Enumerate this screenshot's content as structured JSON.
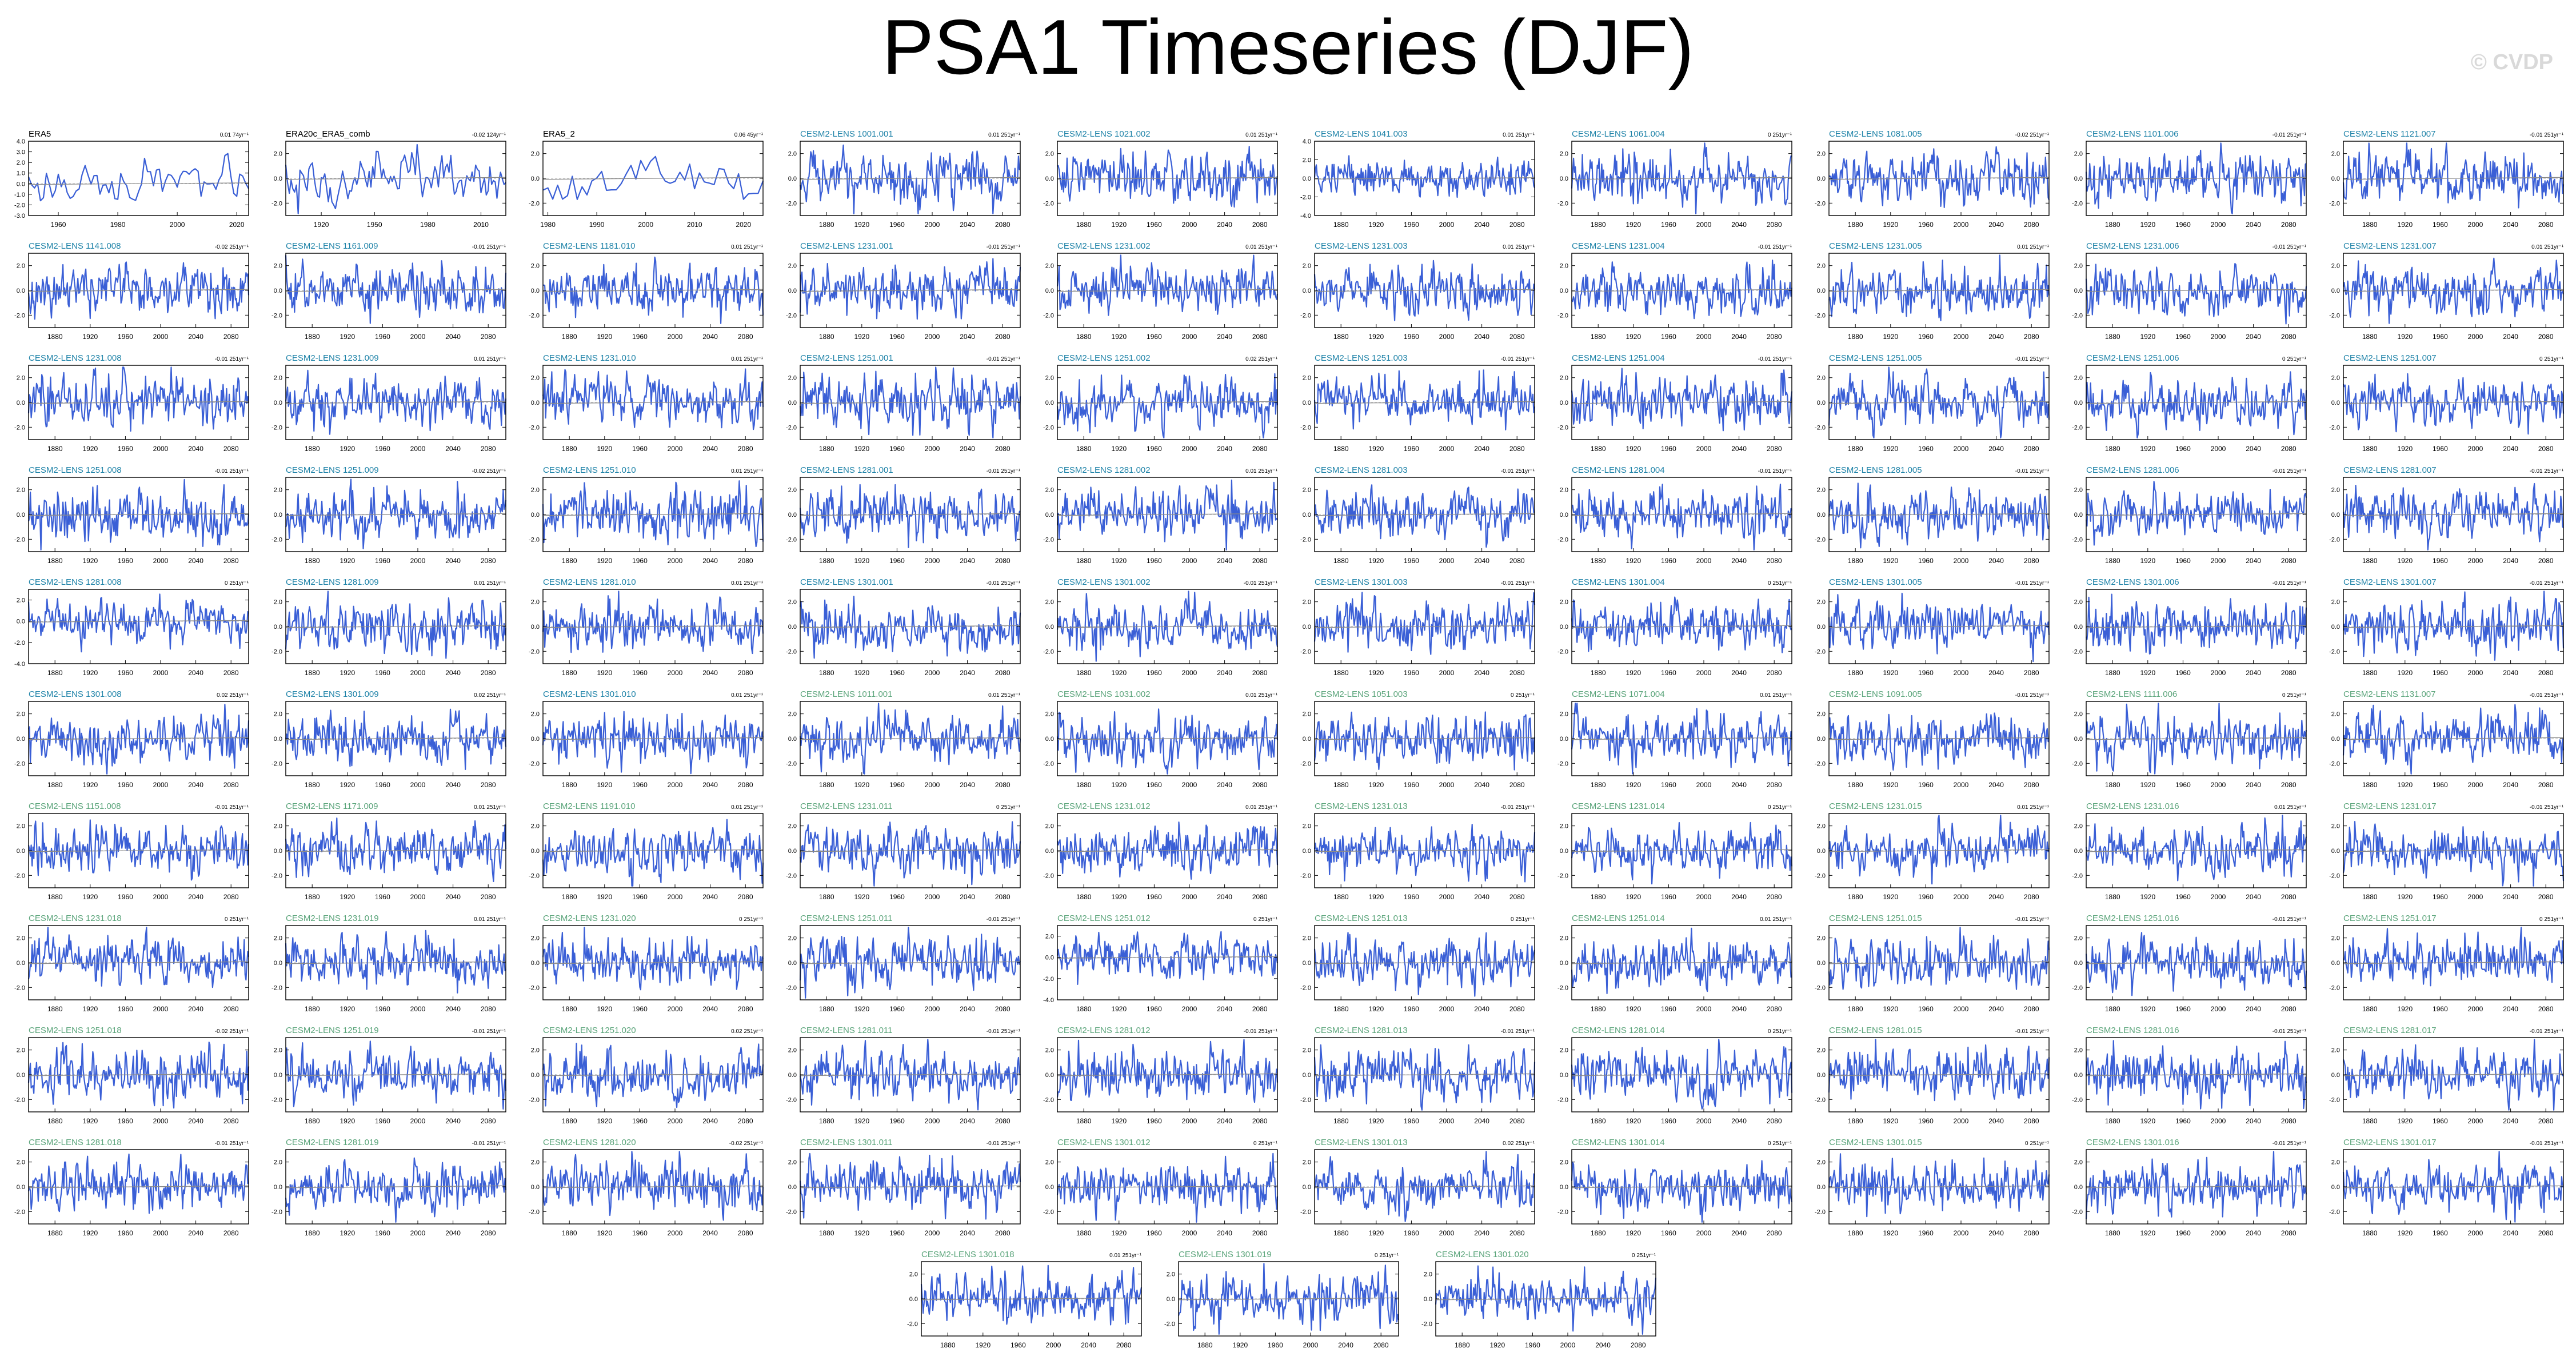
{
  "title": "PSA1 Timeseries (DJF)",
  "watermark": "© CVDP",
  "colors": {
    "series": "#3a5fd6",
    "trend": "#8a8a8a",
    "label_obs": "#000000",
    "label_member": "#1f83a8",
    "label_member_alt": "#5aa47a"
  },
  "chart_data": [
    {
      "type": "line",
      "label": "ERA5",
      "trend": "0.01 74yr⁻¹",
      "xticks": [
        "1960",
        "1980",
        "2000",
        "2020"
      ],
      "xlim": [
        1950,
        2024
      ],
      "yticks": [
        "4.0",
        "3.0",
        "2.0",
        "1.0",
        "0.0",
        "-1.0",
        "-2.0",
        "-3.0"
      ],
      "ylim": [
        -3,
        4
      ],
      "label_style": "obs"
    },
    {
      "type": "line",
      "label": "ERA20c_ERA5_comb",
      "trend": "-0.02 124yr⁻¹",
      "xticks": [
        "1920",
        "1950",
        "1980",
        "2010"
      ],
      "xlim": [
        1900,
        2024
      ],
      "yticks": [
        "2.0",
        "0.0",
        "-2.0"
      ],
      "ylim": [
        -3,
        3
      ],
      "label_style": "obs"
    },
    {
      "type": "line",
      "label": "ERA5_2",
      "trend": "0.06 45yr⁻¹",
      "xticks": [
        "1980",
        "1990",
        "2000",
        "2010",
        "2020"
      ],
      "xlim": [
        1979,
        2024
      ],
      "yticks": [
        "2.0",
        "0.0",
        "-2.0"
      ],
      "ylim": [
        -3,
        3
      ],
      "label_style": "obs"
    },
    {
      "type": "line",
      "label": "CESM2-LENS 1001.001",
      "trend": "0.01 251yr⁻¹",
      "label_style": "member"
    },
    {
      "type": "line",
      "label": "CESM2-LENS 1021.002",
      "trend": "0.01 251yr⁻¹",
      "label_style": "member"
    },
    {
      "type": "line",
      "label": "CESM2-LENS 1041.003",
      "trend": "0.01 251yr⁻¹",
      "yticks": [
        "4.0",
        "2.0",
        "0.0",
        "-2.0",
        "-4.0"
      ],
      "ylim": [
        -4,
        4
      ],
      "label_style": "member"
    },
    {
      "type": "line",
      "label": "CESM2-LENS 1061.004",
      "trend": "0 251yr⁻¹",
      "label_style": "member"
    },
    {
      "type": "line",
      "label": "CESM2-LENS 1081.005",
      "trend": "-0.02 251yr⁻¹",
      "label_style": "member"
    },
    {
      "type": "line",
      "label": "CESM2-LENS 1101.006",
      "trend": "-0.01 251yr⁻¹",
      "label_style": "member"
    },
    {
      "type": "line",
      "label": "CESM2-LENS 1121.007",
      "trend": "-0.01 251yr⁻¹",
      "label_style": "member"
    },
    {
      "type": "line",
      "label": "CESM2-LENS 1141.008",
      "trend": "-0.02 251yr⁻¹",
      "label_style": "member"
    },
    {
      "type": "line",
      "label": "CESM2-LENS 1161.009",
      "trend": "-0.01 251yr⁻¹",
      "label_style": "member"
    },
    {
      "type": "line",
      "label": "CESM2-LENS 1181.010",
      "trend": "0.01 251yr⁻¹",
      "label_style": "member"
    },
    {
      "type": "line",
      "label": "CESM2-LENS 1231.001",
      "trend": "-0.01 251yr⁻¹",
      "label_style": "member"
    },
    {
      "type": "line",
      "label": "CESM2-LENS 1231.002",
      "trend": "0.01 251yr⁻¹",
      "label_style": "member"
    },
    {
      "type": "line",
      "label": "CESM2-LENS 1231.003",
      "trend": "0.01 251yr⁻¹",
      "label_style": "member"
    },
    {
      "type": "line",
      "label": "CESM2-LENS 1231.004",
      "trend": "-0.01 251yr⁻¹",
      "label_style": "member"
    },
    {
      "type": "line",
      "label": "CESM2-LENS 1231.005",
      "trend": "0.01 251yr⁻¹",
      "label_style": "member"
    },
    {
      "type": "line",
      "label": "CESM2-LENS 1231.006",
      "trend": "-0.01 251yr⁻¹",
      "label_style": "member"
    },
    {
      "type": "line",
      "label": "CESM2-LENS 1231.007",
      "trend": "0.01 251yr⁻¹",
      "label_style": "member"
    },
    {
      "type": "line",
      "label": "CESM2-LENS 1231.008",
      "trend": "-0.01 251yr⁻¹",
      "label_style": "member"
    },
    {
      "type": "line",
      "label": "CESM2-LENS 1231.009",
      "trend": "0.01 251yr⁻¹",
      "label_style": "member"
    },
    {
      "type": "line",
      "label": "CESM2-LENS 1231.010",
      "trend": "0.01 251yr⁻¹",
      "label_style": "member"
    },
    {
      "type": "line",
      "label": "CESM2-LENS 1251.001",
      "trend": "-0.01 251yr⁻¹",
      "label_style": "member"
    },
    {
      "type": "line",
      "label": "CESM2-LENS 1251.002",
      "trend": "0.02 251yr⁻¹",
      "label_style": "member"
    },
    {
      "type": "line",
      "label": "CESM2-LENS 1251.003",
      "trend": "-0.01 251yr⁻¹",
      "label_style": "member"
    },
    {
      "type": "line",
      "label": "CESM2-LENS 1251.004",
      "trend": "-0.01 251yr⁻¹",
      "label_style": "member"
    },
    {
      "type": "line",
      "label": "CESM2-LENS 1251.005",
      "trend": "-0.01 251yr⁻¹",
      "label_style": "member"
    },
    {
      "type": "line",
      "label": "CESM2-LENS 1251.006",
      "trend": "0 251yr⁻¹",
      "label_style": "member"
    },
    {
      "type": "line",
      "label": "CESM2-LENS 1251.007",
      "trend": "0 251yr⁻¹",
      "label_style": "member"
    },
    {
      "type": "line",
      "label": "CESM2-LENS 1251.008",
      "trend": "-0.01 251yr⁻¹",
      "label_style": "member"
    },
    {
      "type": "line",
      "label": "CESM2-LENS 1251.009",
      "trend": "-0.02 251yr⁻¹",
      "label_style": "member"
    },
    {
      "type": "line",
      "label": "CESM2-LENS 1251.010",
      "trend": "0.01 251yr⁻¹",
      "label_style": "member"
    },
    {
      "type": "line",
      "label": "CESM2-LENS 1281.001",
      "trend": "-0.01 251yr⁻¹",
      "label_style": "member"
    },
    {
      "type": "line",
      "label": "CESM2-LENS 1281.002",
      "trend": "0.01 251yr⁻¹",
      "label_style": "member"
    },
    {
      "type": "line",
      "label": "CESM2-LENS 1281.003",
      "trend": "-0.01 251yr⁻¹",
      "label_style": "member"
    },
    {
      "type": "line",
      "label": "CESM2-LENS 1281.004",
      "trend": "-0.01 251yr⁻¹",
      "label_style": "member"
    },
    {
      "type": "line",
      "label": "CESM2-LENS 1281.005",
      "trend": "-0.01 251yr⁻¹",
      "label_style": "member"
    },
    {
      "type": "line",
      "label": "CESM2-LENS 1281.006",
      "trend": "-0.01 251yr⁻¹",
      "label_style": "member"
    },
    {
      "type": "line",
      "label": "CESM2-LENS 1281.007",
      "trend": "-0.01 251yr⁻¹",
      "label_style": "member"
    },
    {
      "type": "line",
      "label": "CESM2-LENS 1281.008",
      "trend": "0 251yr⁻¹",
      "yticks": [
        "2.0",
        "0.0",
        "-2.0",
        "-4.0"
      ],
      "ylim": [
        -4,
        3
      ],
      "label_style": "member"
    },
    {
      "type": "line",
      "label": "CESM2-LENS 1281.009",
      "trend": "0.01 251yr⁻¹",
      "label_style": "member"
    },
    {
      "type": "line",
      "label": "CESM2-LENS 1281.010",
      "trend": "0.01 251yr⁻¹",
      "label_style": "member"
    },
    {
      "type": "line",
      "label": "CESM2-LENS 1301.001",
      "trend": "-0.01 251yr⁻¹",
      "label_style": "member"
    },
    {
      "type": "line",
      "label": "CESM2-LENS 1301.002",
      "trend": "-0.01 251yr⁻¹",
      "label_style": "member"
    },
    {
      "type": "line",
      "label": "CESM2-LENS 1301.003",
      "trend": "-0.01 251yr⁻¹",
      "label_style": "member"
    },
    {
      "type": "line",
      "label": "CESM2-LENS 1301.004",
      "trend": "0 251yr⁻¹",
      "label_style": "member"
    },
    {
      "type": "line",
      "label": "CESM2-LENS 1301.005",
      "trend": "-0.01 251yr⁻¹",
      "label_style": "member"
    },
    {
      "type": "line",
      "label": "CESM2-LENS 1301.006",
      "trend": "-0.01 251yr⁻¹",
      "label_style": "member"
    },
    {
      "type": "line",
      "label": "CESM2-LENS 1301.007",
      "trend": "-0.01 251yr⁻¹",
      "label_style": "member"
    },
    {
      "type": "line",
      "label": "CESM2-LENS 1301.008",
      "trend": "0.02 251yr⁻¹",
      "label_style": "member"
    },
    {
      "type": "line",
      "label": "CESM2-LENS 1301.009",
      "trend": "0.02 251yr⁻¹",
      "label_style": "member"
    },
    {
      "type": "line",
      "label": "CESM2-LENS 1301.010",
      "trend": "0.01 251yr⁻¹",
      "label_style": "member"
    },
    {
      "type": "line",
      "label": "CESM2-LENS 1011.001",
      "trend": "0.01 251yr⁻¹",
      "label_style": "member_alt"
    },
    {
      "type": "line",
      "label": "CESM2-LENS 1031.002",
      "trend": "0.01 251yr⁻¹",
      "label_style": "member_alt"
    },
    {
      "type": "line",
      "label": "CESM2-LENS 1051.003",
      "trend": "0 251yr⁻¹",
      "label_style": "member_alt"
    },
    {
      "type": "line",
      "label": "CESM2-LENS 1071.004",
      "trend": "0.01 251yr⁻¹",
      "label_style": "member_alt"
    },
    {
      "type": "line",
      "label": "CESM2-LENS 1091.005",
      "trend": "-0.01 251yr⁻¹",
      "label_style": "member_alt"
    },
    {
      "type": "line",
      "label": "CESM2-LENS 1111.006",
      "trend": "0 251yr⁻¹",
      "label_style": "member_alt"
    },
    {
      "type": "line",
      "label": "CESM2-LENS 1131.007",
      "trend": "-0.01 251yr⁻¹",
      "label_style": "member_alt"
    },
    {
      "type": "line",
      "label": "CESM2-LENS 1151.008",
      "trend": "-0.01 251yr⁻¹",
      "label_style": "member_alt"
    },
    {
      "type": "line",
      "label": "CESM2-LENS 1171.009",
      "trend": "0.01 251yr⁻¹",
      "label_style": "member_alt"
    },
    {
      "type": "line",
      "label": "CESM2-LENS 1191.010",
      "trend": "0.01 251yr⁻¹",
      "label_style": "member_alt"
    },
    {
      "type": "line",
      "label": "CESM2-LENS 1231.011",
      "trend": "0 251yr⁻¹",
      "label_style": "member_alt"
    },
    {
      "type": "line",
      "label": "CESM2-LENS 1231.012",
      "trend": "0.01 251yr⁻¹",
      "label_style": "member_alt"
    },
    {
      "type": "line",
      "label": "CESM2-LENS 1231.013",
      "trend": "-0.01 251yr⁻¹",
      "label_style": "member_alt"
    },
    {
      "type": "line",
      "label": "CESM2-LENS 1231.014",
      "trend": "0 251yr⁻¹",
      "label_style": "member_alt"
    },
    {
      "type": "line",
      "label": "CESM2-LENS 1231.015",
      "trend": "0.01 251yr⁻¹",
      "label_style": "member_alt"
    },
    {
      "type": "line",
      "label": "CESM2-LENS 1231.016",
      "trend": "0.01 251yr⁻¹",
      "label_style": "member_alt"
    },
    {
      "type": "line",
      "label": "CESM2-LENS 1231.017",
      "trend": "-0.01 251yr⁻¹",
      "label_style": "member_alt"
    },
    {
      "type": "line",
      "label": "CESM2-LENS 1231.018",
      "trend": "0 251yr⁻¹",
      "label_style": "member_alt"
    },
    {
      "type": "line",
      "label": "CESM2-LENS 1231.019",
      "trend": "0.01 251yr⁻¹",
      "label_style": "member_alt"
    },
    {
      "type": "line",
      "label": "CESM2-LENS 1231.020",
      "trend": "0 251yr⁻¹",
      "label_style": "member_alt"
    },
    {
      "type": "line",
      "label": "CESM2-LENS 1251.011",
      "trend": "-0.01 251yr⁻¹",
      "label_style": "member_alt"
    },
    {
      "type": "line",
      "label": "CESM2-LENS 1251.012",
      "trend": "0 251yr⁻¹",
      "yticks": [
        "2.0",
        "0.0",
        "-2.0",
        "-4.0"
      ],
      "ylim": [
        -4,
        3
      ],
      "label_style": "member_alt"
    },
    {
      "type": "line",
      "label": "CESM2-LENS 1251.013",
      "trend": "0 251yr⁻¹",
      "label_style": "member_alt"
    },
    {
      "type": "line",
      "label": "CESM2-LENS 1251.014",
      "trend": "0.01 251yr⁻¹",
      "label_style": "member_alt"
    },
    {
      "type": "line",
      "label": "CESM2-LENS 1251.015",
      "trend": "-0.01 251yr⁻¹",
      "label_style": "member_alt"
    },
    {
      "type": "line",
      "label": "CESM2-LENS 1251.016",
      "trend": "-0.01 251yr⁻¹",
      "label_style": "member_alt"
    },
    {
      "type": "line",
      "label": "CESM2-LENS 1251.017",
      "trend": "0 251yr⁻¹",
      "label_style": "member_alt"
    },
    {
      "type": "line",
      "label": "CESM2-LENS 1251.018",
      "trend": "-0.02 251yr⁻¹",
      "label_style": "member_alt"
    },
    {
      "type": "line",
      "label": "CESM2-LENS 1251.019",
      "trend": "-0.01 251yr⁻¹",
      "label_style": "member_alt"
    },
    {
      "type": "line",
      "label": "CESM2-LENS 1251.020",
      "trend": "0.02 251yr⁻¹",
      "label_style": "member_alt"
    },
    {
      "type": "line",
      "label": "CESM2-LENS 1281.011",
      "trend": "-0.01 251yr⁻¹",
      "label_style": "member_alt"
    },
    {
      "type": "line",
      "label": "CESM2-LENS 1281.012",
      "trend": "-0.01 251yr⁻¹",
      "label_style": "member_alt"
    },
    {
      "type": "line",
      "label": "CESM2-LENS 1281.013",
      "trend": "-0.01 251yr⁻¹",
      "label_style": "member_alt"
    },
    {
      "type": "line",
      "label": "CESM2-LENS 1281.014",
      "trend": "0 251yr⁻¹",
      "label_style": "member_alt"
    },
    {
      "type": "line",
      "label": "CESM2-LENS 1281.015",
      "trend": "-0.01 251yr⁻¹",
      "label_style": "member_alt"
    },
    {
      "type": "line",
      "label": "CESM2-LENS 1281.016",
      "trend": "-0.01 251yr⁻¹",
      "label_style": "member_alt"
    },
    {
      "type": "line",
      "label": "CESM2-LENS 1281.017",
      "trend": "-0.01 251yr⁻¹",
      "label_style": "member_alt"
    },
    {
      "type": "line",
      "label": "CESM2-LENS 1281.018",
      "trend": "-0.01 251yr⁻¹",
      "label_style": "member_alt"
    },
    {
      "type": "line",
      "label": "CESM2-LENS 1281.019",
      "trend": "-0.01 251yr⁻¹",
      "label_style": "member_alt"
    },
    {
      "type": "line",
      "label": "CESM2-LENS 1281.020",
      "trend": "-0.02 251yr⁻¹",
      "label_style": "member_alt"
    },
    {
      "type": "line",
      "label": "CESM2-LENS 1301.011",
      "trend": "-0.01 251yr⁻¹",
      "label_style": "member_alt"
    },
    {
      "type": "line",
      "label": "CESM2-LENS 1301.012",
      "trend": "0 251yr⁻¹",
      "label_style": "member_alt"
    },
    {
      "type": "line",
      "label": "CESM2-LENS 1301.013",
      "trend": "0.02 251yr⁻¹",
      "label_style": "member_alt"
    },
    {
      "type": "line",
      "label": "CESM2-LENS 1301.014",
      "trend": "0 251yr⁻¹",
      "label_style": "member_alt"
    },
    {
      "type": "line",
      "label": "CESM2-LENS 1301.015",
      "trend": "0 251yr⁻¹",
      "label_style": "member_alt"
    },
    {
      "type": "line",
      "label": "CESM2-LENS 1301.016",
      "trend": "-0.01 251yr⁻¹",
      "label_style": "member_alt"
    },
    {
      "type": "line",
      "label": "CESM2-LENS 1301.017",
      "trend": "-0.01 251yr⁻¹",
      "label_style": "member_alt"
    },
    {
      "type": "line",
      "label": "CESM2-LENS 1301.018",
      "trend": "0.01 251yr⁻¹",
      "label_style": "member_alt"
    },
    {
      "type": "line",
      "label": "CESM2-LENS 1301.019",
      "trend": "0 251yr⁻¹",
      "label_style": "member_alt"
    },
    {
      "type": "line",
      "label": "CESM2-LENS 1301.020",
      "trend": "0 251yr⁻¹",
      "label_style": "member_alt"
    }
  ],
  "defaults": {
    "xticks": [
      "1880",
      "1920",
      "1960",
      "2000",
      "2040",
      "2080"
    ],
    "xlim": [
      1850,
      2100
    ],
    "yticks": [
      "2.0",
      "0.0",
      "-2.0"
    ],
    "ylim": [
      -3,
      3
    ]
  }
}
